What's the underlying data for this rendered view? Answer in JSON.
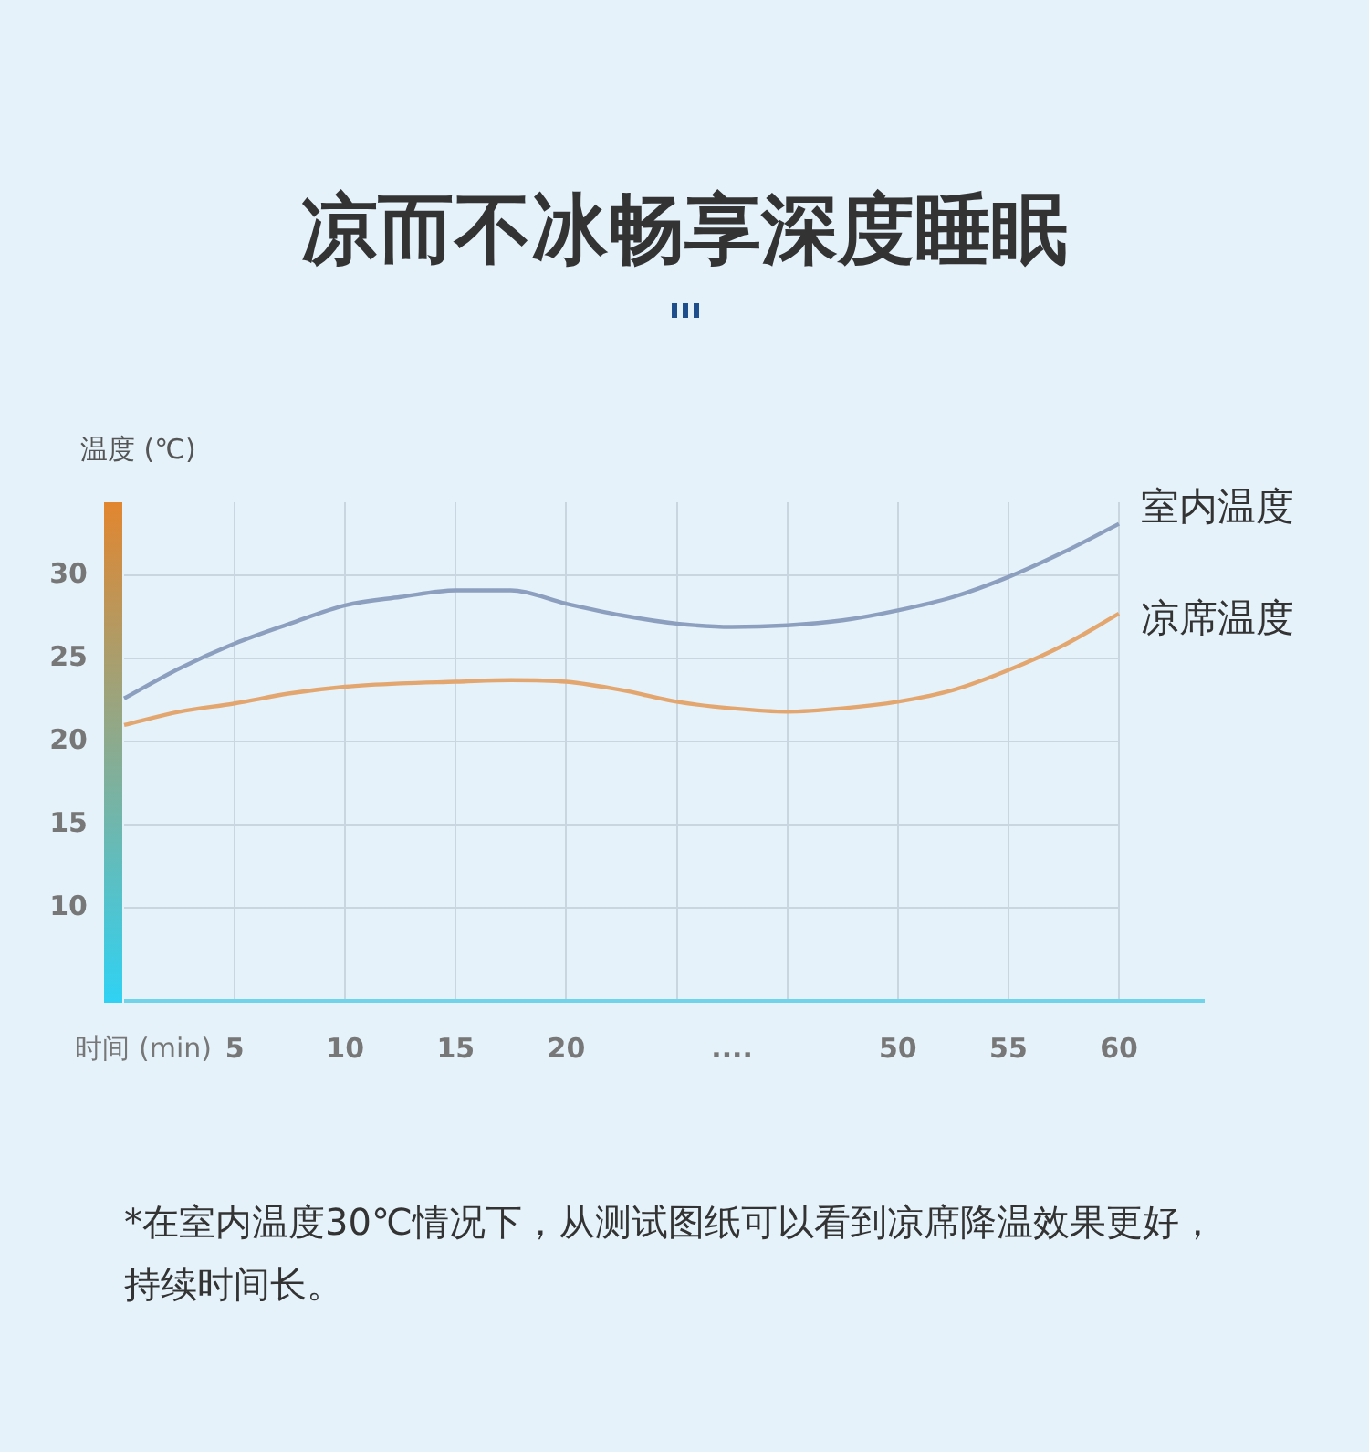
{
  "chart_data": {
    "type": "line",
    "title": "凉而不冰畅享深度睡眠",
    "xlabel": "时间 (min)",
    "ylabel": "温度 (℃)",
    "categories": [
      null,
      null,
      "5",
      null,
      "10",
      null,
      "15",
      null,
      "20",
      null,
      null,
      "....",
      null,
      null,
      "50",
      null,
      "55",
      null,
      "60"
    ],
    "series": [
      {
        "name": "室内温度",
        "color": "#8c9fbf",
        "values": [
          22.6,
          24.4,
          25.9,
          27.1,
          28.2,
          28.7,
          29.1,
          29.1,
          28.3,
          27.6,
          27.1,
          26.9,
          27.0,
          27.3,
          27.9,
          28.7,
          29.9,
          31.4,
          33.1
        ]
      },
      {
        "name": "凉席温度",
        "color": "#e3a66f",
        "values": [
          21.0,
          21.8,
          22.3,
          22.9,
          23.3,
          23.5,
          23.6,
          23.7,
          23.6,
          23.1,
          22.4,
          22.0,
          21.8,
          22.0,
          22.4,
          23.1,
          24.3,
          25.8,
          27.7
        ]
      }
    ],
    "ylim": [
      4.4,
      34.4
    ],
    "yticks": [
      10,
      15,
      20,
      25,
      30
    ],
    "grid": true,
    "marker": "none",
    "line_style": "solid",
    "annotations": [
      "*在室内温度30℃情况下，从测试图纸可以看到凉席降温效果更好，持续时间长。"
    ]
  }
}
